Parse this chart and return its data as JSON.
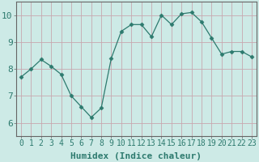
{
  "x": [
    0,
    1,
    2,
    3,
    4,
    5,
    6,
    7,
    8,
    9,
    10,
    11,
    12,
    13,
    14,
    15,
    16,
    17,
    18,
    19,
    20,
    21,
    22,
    23
  ],
  "y": [
    7.7,
    8.0,
    8.35,
    8.1,
    7.8,
    7.0,
    6.6,
    6.2,
    6.55,
    8.4,
    9.4,
    9.65,
    9.65,
    9.2,
    10.0,
    9.65,
    10.05,
    10.1,
    9.75,
    9.15,
    8.55,
    8.65,
    8.65,
    8.45
  ],
  "line_color": "#2d7a6e",
  "marker": "D",
  "marker_size": 2.5,
  "bg_color": "#cdeae6",
  "grid_color": "#c8a8b0",
  "xlabel": "Humidex (Indice chaleur)",
  "ylim": [
    5.5,
    10.5
  ],
  "xlim": [
    -0.5,
    23.5
  ],
  "yticks": [
    6,
    7,
    8,
    9,
    10
  ],
  "xticks": [
    0,
    1,
    2,
    3,
    4,
    5,
    6,
    7,
    8,
    9,
    10,
    11,
    12,
    13,
    14,
    15,
    16,
    17,
    18,
    19,
    20,
    21,
    22,
    23
  ],
  "xlabel_fontsize": 8,
  "tick_fontsize": 7,
  "spine_color": "#666666",
  "title_color": "#2d7a6e"
}
